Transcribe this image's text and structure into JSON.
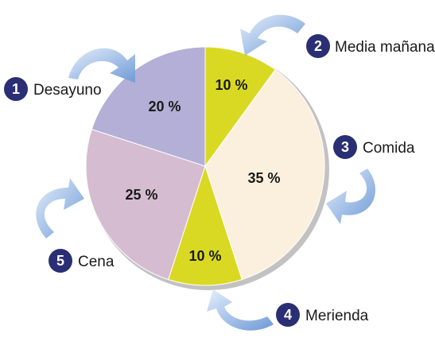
{
  "chart_data": {
    "type": "pie",
    "title": "",
    "slices": [
      {
        "number": "1",
        "label": "Desayuno",
        "value": 20,
        "value_label": "20 %",
        "color": "#b3afd6"
      },
      {
        "number": "2",
        "label": "Media mañana",
        "value": 10,
        "value_label": "10 %",
        "color": "#d9d923"
      },
      {
        "number": "3",
        "label": "Comida",
        "value": 35,
        "value_label": "35 %",
        "color": "#fbf0dd"
      },
      {
        "number": "4",
        "label": "Merienda",
        "value": 10,
        "value_label": "10 %",
        "color": "#d9d923"
      },
      {
        "number": "5",
        "label": "Cena",
        "value": 25,
        "value_label": "25 %",
        "color": "#d5bcd0"
      }
    ],
    "legend": "numbered-callouts",
    "colors": {
      "badge": "#2a2e74",
      "arrow": "#8fb4e3",
      "shadow": "#b8b8b8"
    }
  }
}
